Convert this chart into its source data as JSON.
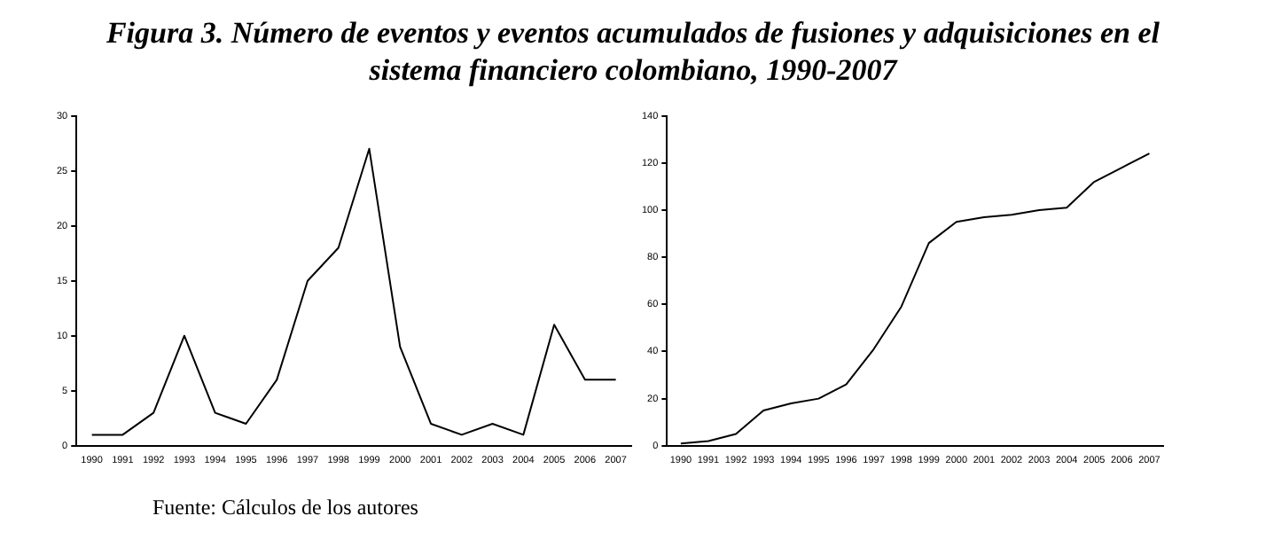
{
  "chart_data": [
    {
      "type": "line",
      "title": "Figura 3. Número de eventos y eventos acumulados de fusiones y adquisiciones en el sistema financiero colombiano, 1990-2007",
      "categories": [
        "1990",
        "1991",
        "1992",
        "1993",
        "1994",
        "1995",
        "1996",
        "1997",
        "1998",
        "1999",
        "2000",
        "2001",
        "2002",
        "2003",
        "2004",
        "2005",
        "2006",
        "2007"
      ],
      "series": [
        {
          "color": "#000000",
          "values": [
            1,
            1,
            3,
            10,
            3,
            2,
            6,
            15,
            18,
            27,
            9,
            2,
            1,
            2,
            1,
            11,
            6,
            6
          ]
        }
      ],
      "ylim": [
        0,
        30
      ],
      "yticks": [
        0,
        5,
        10,
        15,
        20,
        25,
        30
      ],
      "grid": false,
      "legend": false,
      "marker": "none"
    },
    {
      "type": "line",
      "annotations": [
        "Fuente: Cálculos de los autores"
      ],
      "categories": [
        "1990",
        "1991",
        "1992",
        "1993",
        "1994",
        "1995",
        "1996",
        "1997",
        "1998",
        "1999",
        "2000",
        "2001",
        "2002",
        "2003",
        "2004",
        "2005",
        "2006",
        "2007"
      ],
      "series": [
        {
          "color": "#000000",
          "values": [
            1,
            2,
            5,
            15,
            18,
            20,
            26,
            41,
            59,
            86,
            95,
            97,
            98,
            100,
            101,
            112,
            118,
            124
          ]
        }
      ],
      "ylim": [
        0,
        140
      ],
      "yticks": [
        0,
        20,
        40,
        60,
        80,
        100,
        120,
        140
      ],
      "grid": false,
      "legend": false,
      "marker": "none"
    }
  ]
}
